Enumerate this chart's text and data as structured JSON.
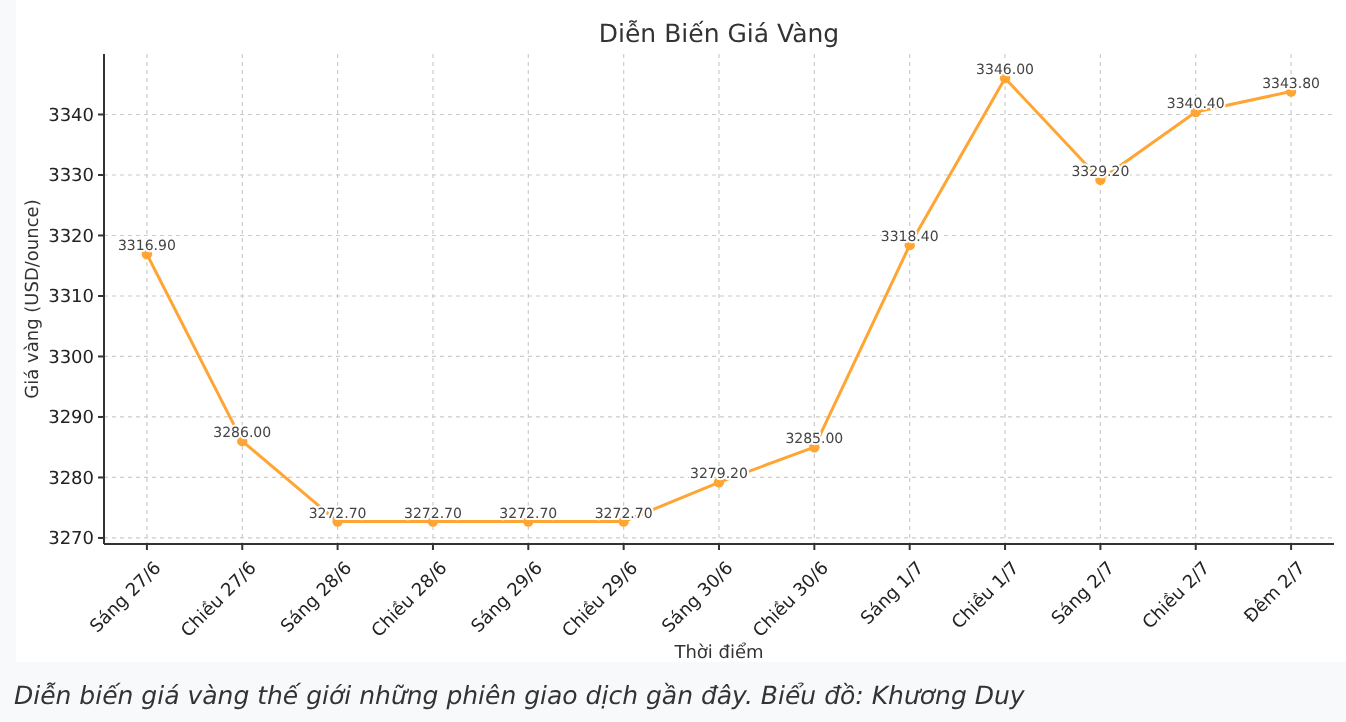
{
  "chart_data": {
    "type": "line",
    "title": "Diễn Biến Giá Vàng",
    "xlabel": "Thời điểm",
    "ylabel": "Giá vàng (USD/ounce)",
    "categories": [
      "Sáng 27/6",
      "Chiều 27/6",
      "Sáng 28/6",
      "Chiều 28/6",
      "Sáng 29/6",
      "Chiều 29/6",
      "Sáng 30/6",
      "Chiều 30/6",
      "Sáng 1/7",
      "Chiều 1/7",
      "Sáng 2/7",
      "Chiều 2/7",
      "Đêm 2/7"
    ],
    "series": [
      {
        "color": "#ffa533",
        "values": [
          3316.9,
          3286.0,
          3272.7,
          3272.7,
          3272.7,
          3272.7,
          3279.2,
          3285.0,
          3318.4,
          3346.0,
          3329.2,
          3340.4,
          3343.8
        ],
        "value_labels": [
          "3316.90",
          "3286.00",
          "3272.70",
          "3272.70",
          "3272.70",
          "3272.70",
          "3279.20",
          "3285.00",
          "3318.40",
          "3346.00",
          "3329.20",
          "3340.40",
          "3343.80"
        ]
      }
    ],
    "ylim": [
      3269,
      3350
    ],
    "yticks": [
      3270,
      3280,
      3290,
      3300,
      3310,
      3320,
      3330,
      3340
    ],
    "grid": true,
    "marker": "circle",
    "line_style": "solid",
    "annotations": [
      "Diễn biến giá vàng thế giới những phiên giao dịch gần đây. Biểu đồ: Khương Duy"
    ]
  }
}
